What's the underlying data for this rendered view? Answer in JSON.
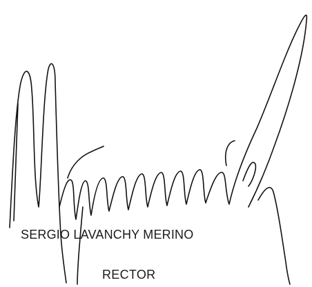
{
  "signatory": {
    "name": "SERGIO LAVANCHY MERINO",
    "title": "RECTOR"
  }
}
